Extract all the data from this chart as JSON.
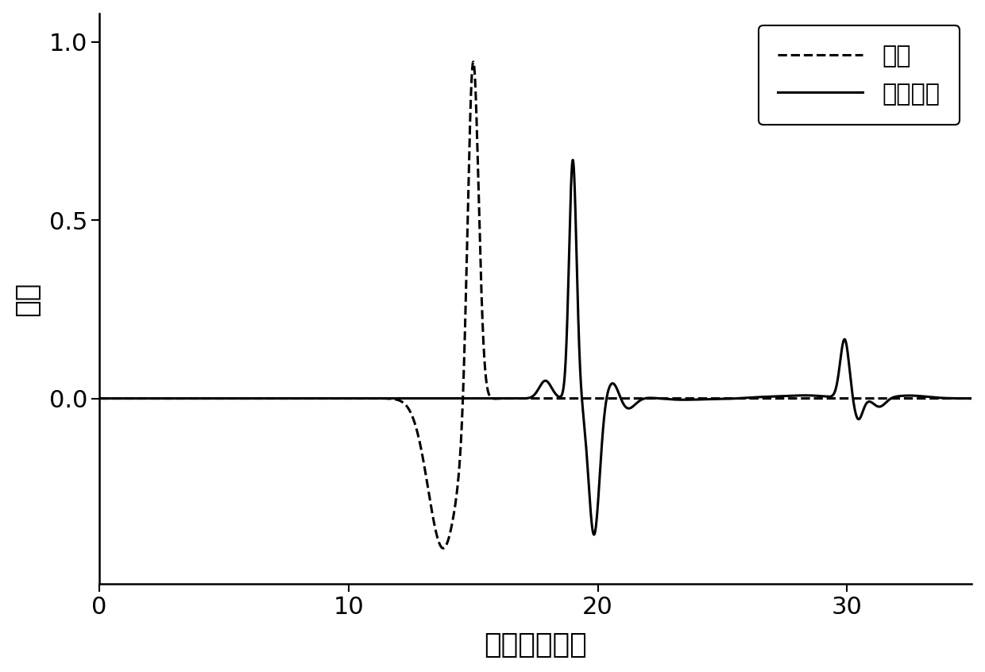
{
  "xlabel": "时间（皮秒）",
  "ylabel": "振幅",
  "legend_ref": "参考",
  "legend_std": "标准量具",
  "xlim": [
    0,
    35
  ],
  "ylim": [
    -0.52,
    1.08
  ],
  "xticks": [
    0,
    10,
    20,
    30
  ],
  "yticks": [
    0,
    0.5,
    1
  ],
  "line_color": "#000000",
  "background_color": "#ffffff"
}
